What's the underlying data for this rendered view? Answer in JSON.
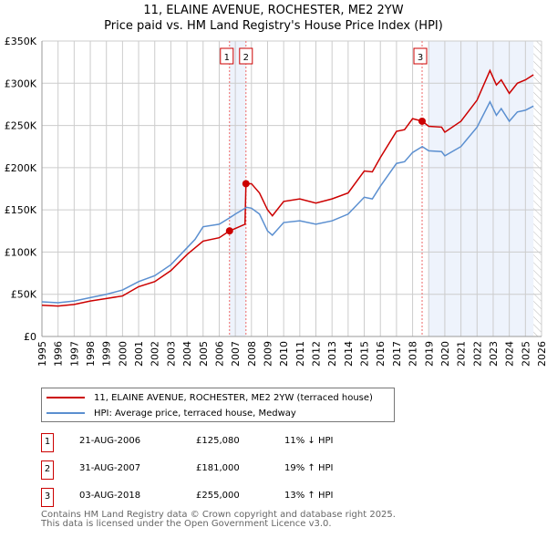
{
  "colors": {
    "price": "#cc0000",
    "hpi": "#5b8fd0",
    "shade": "#eef3fc"
  },
  "chart_data": {
    "type": "line",
    "title": "11, ELAINE AVENUE, ROCHESTER, ME2 2YW",
    "subtitle": "Price paid vs. HM Land Registry's House Price Index (HPI)",
    "xlim": [
      1995,
      2026
    ],
    "ylim": [
      0,
      350000
    ],
    "x_ticks": [
      1995,
      1996,
      1997,
      1998,
      1999,
      2000,
      2001,
      2002,
      2003,
      2004,
      2005,
      2006,
      2007,
      2008,
      2009,
      2010,
      2011,
      2012,
      2013,
      2014,
      2015,
      2016,
      2017,
      2018,
      2019,
      2020,
      2021,
      2022,
      2023,
      2024,
      2025,
      2026
    ],
    "y_ticks": [
      {
        "v": 0,
        "label": "£0"
      },
      {
        "v": 50000,
        "label": "£50K"
      },
      {
        "v": 100000,
        "label": "£100K"
      },
      {
        "v": 150000,
        "label": "£150K"
      },
      {
        "v": 200000,
        "label": "£200K"
      },
      {
        "v": 250000,
        "label": "£250K"
      },
      {
        "v": 300000,
        "label": "£300K"
      },
      {
        "v": 350000,
        "label": "£350K"
      }
    ],
    "grid": true,
    "shaded_ranges": [
      [
        2006.64,
        2007.66
      ],
      [
        2019.0,
        2025.5
      ]
    ],
    "forecast_hatch_from": 2025.5,
    "series": [
      {
        "name": "11, ELAINE AVENUE, ROCHESTER, ME2 2YW (terraced house)",
        "key": "price",
        "x": [
          1995,
          1996,
          1997,
          1998,
          1999,
          2000,
          2001,
          2002,
          2003,
          2004,
          2005,
          2006,
          2006.64,
          2007,
          2007.6,
          2007.66,
          2008,
          2008.5,
          2009,
          2009.3,
          2010,
          2011,
          2012,
          2013,
          2014,
          2015,
          2015.5,
          2016,
          2017,
          2017.5,
          2018,
          2018.6,
          2019,
          2019.8,
          2020,
          2021,
          2022,
          2022.8,
          2023.2,
          2023.5,
          2024,
          2024.5,
          2025,
          2025.5
        ],
        "y": [
          37000,
          36000,
          38000,
          42000,
          45000,
          48000,
          59000,
          65000,
          78000,
          97000,
          113000,
          117000,
          125080,
          128000,
          133000,
          181000,
          181000,
          170000,
          150000,
          143000,
          160000,
          163000,
          158000,
          163000,
          170000,
          196000,
          195000,
          212000,
          243000,
          245000,
          258000,
          255000,
          249000,
          248000,
          242000,
          255000,
          280000,
          315000,
          298000,
          304000,
          288000,
          300000,
          304000,
          310000
        ]
      },
      {
        "name": "HPI: Average price, terraced house, Medway",
        "key": "hpi",
        "x": [
          1995,
          1996,
          1997,
          1998,
          1999,
          2000,
          2001,
          2002,
          2003,
          2004,
          2004.5,
          2005,
          2006,
          2006.6,
          2007,
          2007.7,
          2008,
          2008.5,
          2009,
          2009.3,
          2010,
          2011,
          2012,
          2013,
          2014,
          2015,
          2015.5,
          2016,
          2017,
          2017.5,
          2018,
          2018.6,
          2019,
          2019.8,
          2020,
          2021,
          2022,
          2022.8,
          2023.2,
          2023.5,
          2024,
          2024.5,
          2025,
          2025.5
        ],
        "y": [
          41000,
          40000,
          42000,
          46000,
          50000,
          55000,
          65000,
          72000,
          85000,
          105000,
          115000,
          130000,
          133000,
          140000,
          145000,
          153000,
          152000,
          145000,
          125000,
          120000,
          135000,
          137000,
          133000,
          137000,
          145000,
          165000,
          163000,
          178000,
          205000,
          207000,
          218000,
          225000,
          220000,
          219000,
          214000,
          225000,
          248000,
          278000,
          262000,
          270000,
          255000,
          266000,
          268000,
          273000
        ]
      }
    ],
    "sales": [
      {
        "n": "1",
        "x": 2006.64,
        "y": 125080,
        "date": "21-AUG-2006",
        "price": "£125,080",
        "hpi": "11% ↓ HPI"
      },
      {
        "n": "2",
        "x": 2007.66,
        "y": 181000,
        "date": "31-AUG-2007",
        "price": "£181,000",
        "hpi": "19% ↑ HPI"
      },
      {
        "n": "3",
        "x": 2018.59,
        "y": 255000,
        "date": "03-AUG-2018",
        "price": "£255,000",
        "hpi": "13% ↑ HPI"
      }
    ],
    "footer": [
      "Contains HM Land Registry data © Crown copyright and database right 2025.",
      "This data is licensed under the Open Government Licence v3.0."
    ]
  }
}
